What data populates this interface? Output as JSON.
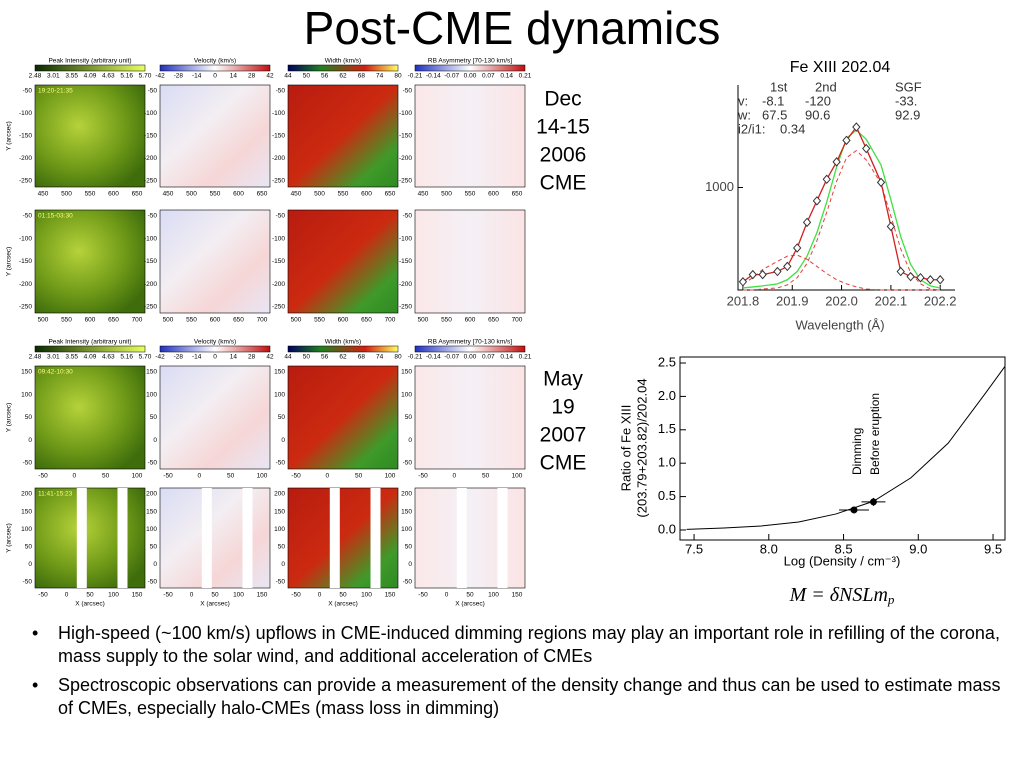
{
  "title": "Post-CME dynamics",
  "events": [
    {
      "label": [
        "Dec",
        "14-15",
        "2006",
        "CME"
      ]
    },
    {
      "label": [
        "May",
        "19",
        "2007",
        "CME"
      ]
    }
  ],
  "panel_titles": [
    "Peak Intensity (arbitrary unit)",
    "Velocity (km/s)",
    "Width (km/s)",
    "RB Asymmetry [70-130 km/s]"
  ],
  "colorbar_ticks": [
    [
      "2.48",
      "3.01",
      "3.55",
      "4.09",
      "4.63",
      "5.16",
      "5.70"
    ],
    [
      "-42",
      "-28",
      "-14",
      "0",
      "14",
      "28",
      "42"
    ],
    [
      "44",
      "50",
      "56",
      "62",
      "68",
      "74",
      "80"
    ],
    [
      "-0.21",
      "-0.14",
      "-0.07",
      "0.00",
      "0.07",
      "0.14",
      "0.21"
    ]
  ],
  "y_axis_label": "Y (arcsec)",
  "x_axis_label": "X (arcsec)",
  "rows": [
    {
      "time": "19:20-21:35",
      "yticks": [
        "-50",
        "-100",
        "-150",
        "-200",
        "-250"
      ],
      "xticks": [
        "450",
        "500",
        "550",
        "600",
        "650"
      ]
    },
    {
      "time": "01:15-03:30",
      "yticks": [
        "-50",
        "-100",
        "-150",
        "-200",
        "-250"
      ],
      "xticks": [
        "500",
        "550",
        "600",
        "650",
        "700"
      ]
    },
    {
      "time": "09:42-10:30",
      "yticks": [
        "150",
        "100",
        "50",
        "0",
        "-50"
      ],
      "xticks": [
        "-50",
        "0",
        "50",
        "100"
      ]
    },
    {
      "time": "11:41-15:23",
      "yticks": [
        "200",
        "150",
        "100",
        "50",
        "0",
        "-50"
      ],
      "xticks": [
        "-50",
        "0",
        "50",
        "100",
        "150"
      ]
    }
  ],
  "spectrum": {
    "title": "Fe XIII 202.04",
    "xlabel": "Wavelength (Å)",
    "xlim": [
      201.79,
      202.23
    ],
    "ylim": [
      0,
      2000
    ],
    "xticks": [
      {
        "value": 201.8,
        "label": "201.8"
      },
      {
        "value": 201.9,
        "label": "201.9"
      },
      {
        "value": 202.0,
        "label": "202.0"
      },
      {
        "value": 202.1,
        "label": "202.1"
      },
      {
        "value": 202.2,
        "label": "202.2"
      }
    ],
    "yticks": [
      1000
    ],
    "legend": [
      [
        "1st",
        "2nd",
        "SGF"
      ],
      [
        "v:",
        "-8.1",
        "-120",
        "-33."
      ],
      [
        "w:",
        "67.5",
        "90.6",
        "92.9"
      ],
      [
        "i2/i1:",
        "0.34"
      ]
    ],
    "x": [
      201.8,
      201.82,
      201.84,
      201.87,
      201.89,
      201.91,
      201.93,
      201.95,
      201.97,
      201.99,
      202.01,
      202.03,
      202.05,
      202.08,
      202.1,
      202.12,
      202.14,
      202.16,
      202.18,
      202.2
    ],
    "observed": [
      80,
      150,
      150,
      180,
      230,
      410,
      660,
      870,
      1080,
      1250,
      1460,
      1590,
      1380,
      1050,
      620,
      180,
      130,
      120,
      100,
      100
    ],
    "sgf": [
      20,
      30,
      40,
      60,
      100,
      180,
      330,
      560,
      860,
      1200,
      1480,
      1560,
      1470,
      1220,
      880,
      520,
      250,
      100,
      40,
      20
    ],
    "component_1": [
      0,
      0,
      10,
      20,
      50,
      120,
      260,
      480,
      760,
      1060,
      1290,
      1360,
      1270,
      1040,
      720,
      400,
      170,
      60,
      10,
      0
    ],
    "component_2": [
      60,
      120,
      200,
      280,
      330,
      340,
      300,
      230,
      160,
      100,
      60,
      30,
      10,
      0,
      0,
      0,
      0,
      0,
      0,
      0
    ]
  },
  "density": {
    "ylabel": [
      "Ratio of Fe XIII",
      "(203.79+203.82)/202.04"
    ],
    "xlabel": "Log (Density / cm⁻³)",
    "xlim": [
      7.406,
      9.58
    ],
    "ylim": [
      -0.15,
      2.59
    ],
    "xticks": [
      {
        "value": 7.5,
        "label": "7.5"
      },
      {
        "value": 8.0,
        "label": "8.0"
      },
      {
        "value": 8.5,
        "label": "8.5"
      },
      {
        "value": 9.0,
        "label": "9.0"
      },
      {
        "value": 9.5,
        "label": "9.5"
      }
    ],
    "yticks": [
      {
        "value": 0.0,
        "label": "0.0"
      },
      {
        "value": 0.5,
        "label": "0.5"
      },
      {
        "value": 1.0,
        "label": "1.0"
      },
      {
        "value": 1.5,
        "label": "1.5"
      },
      {
        "value": 2.0,
        "label": "2.0"
      },
      {
        "value": 2.5,
        "label": "2.5"
      }
    ],
    "curve_x": [
      7.45,
      7.7,
      7.95,
      8.2,
      8.45,
      8.7,
      8.95,
      9.2,
      9.45,
      9.58
    ],
    "curve_y": [
      0.01,
      0.03,
      0.06,
      0.12,
      0.24,
      0.43,
      0.78,
      1.3,
      2.05,
      2.45
    ],
    "points": [
      {
        "name": "Dimming",
        "x": 8.57,
        "y": 0.3,
        "xerr": 0.1,
        "yerr": 0.03
      },
      {
        "name": "Before eruption",
        "x": 8.7,
        "y": 0.42,
        "xerr": 0.08,
        "yerr": 0.06
      }
    ],
    "formula": [
      "M = δNSLm",
      "p"
    ]
  },
  "bullets": [
    "High-speed (~100 km/s) upflows in CME-induced dimming regions may play an important role in refilling of the corona, mass supply to the solar wind, and additional acceleration of CMEs",
    "Spectroscopic observations can provide a measurement of the density change and thus can be used to estimate mass of CMEs, especially halo-CMEs (mass loss in dimming)"
  ]
}
